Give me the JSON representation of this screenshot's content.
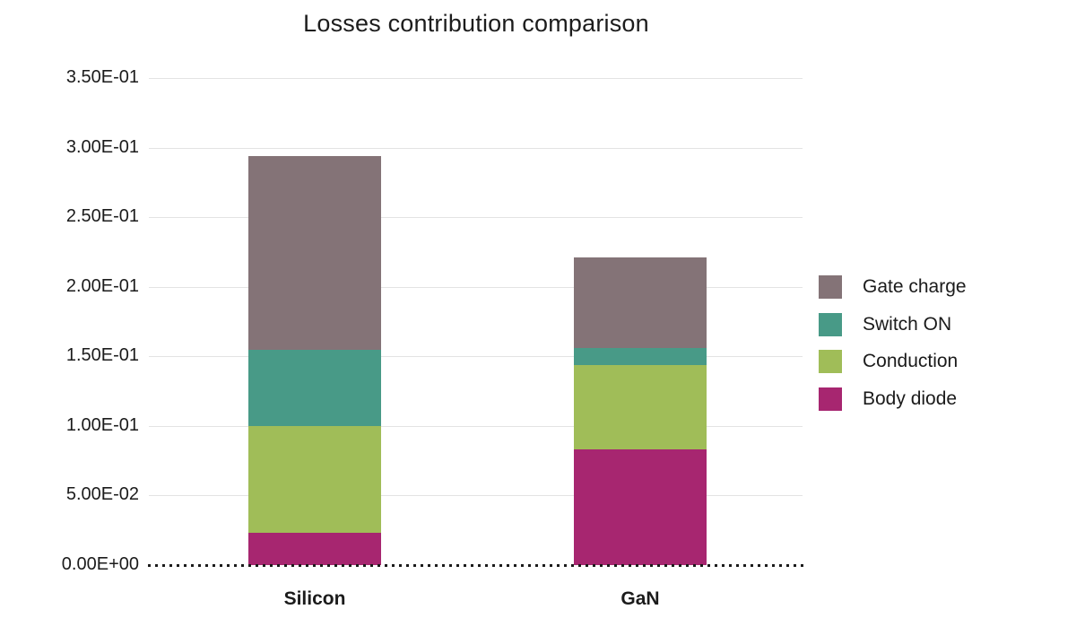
{
  "chart_data": {
    "type": "bar",
    "stacked": true,
    "title": "Losses contribution comparison",
    "categories": [
      "Silicon",
      "GaN"
    ],
    "series": [
      {
        "name": "Body diode",
        "color": "#A72670",
        "values": [
          0.023,
          0.083
        ]
      },
      {
        "name": "Conduction",
        "color": "#A0BD58",
        "values": [
          0.077,
          0.061
        ]
      },
      {
        "name": "Switch ON",
        "color": "#489A87",
        "values": [
          0.055,
          0.012
        ]
      },
      {
        "name": "Gate charge",
        "color": "#847377",
        "values": [
          0.139,
          0.065
        ]
      }
    ],
    "stack_totals": [
      0.294,
      0.221
    ],
    "ylim": [
      0,
      0.35
    ],
    "ytick_step": 0.05,
    "ytick_labels": [
      "0.00E+00",
      "5.00E-02",
      "1.00E-01",
      "1.50E-01",
      "2.00E-01",
      "2.50E-01",
      "3.00E-01",
      "3.50E-01"
    ],
    "grid": true,
    "baseline_style": "dotted",
    "legend": {
      "position": "right",
      "items": [
        {
          "label": "Gate charge",
          "color": "#847377"
        },
        {
          "label": "Switch ON",
          "color": "#489A87"
        },
        {
          "label": "Conduction",
          "color": "#A0BD58"
        },
        {
          "label": "Body diode",
          "color": "#A72670"
        }
      ]
    }
  }
}
